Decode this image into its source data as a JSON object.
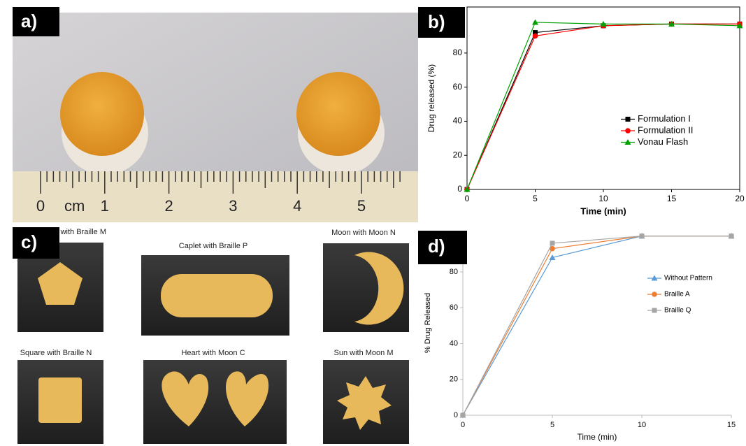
{
  "panel_labels": [
    "a)",
    "b)",
    "c)",
    "d)"
  ],
  "ruler": {
    "unit": "cm",
    "numbers": [
      0,
      1,
      2,
      3,
      4,
      5
    ]
  },
  "captions": [
    "with Braille M",
    "Caplet with Braille P",
    "Moon with Moon N",
    "Square with Braille N",
    "Heart with Moon C",
    "Sun with Moon M"
  ],
  "chart_data": [
    {
      "type": "line",
      "xlabel": "Time (min)",
      "ylabel": "Drug released (%)",
      "x": [
        0,
        5,
        10,
        15,
        20
      ],
      "xlim": [
        0,
        20
      ],
      "xticks": [
        0,
        5,
        10,
        15,
        20
      ],
      "ylim": [
        0,
        107
      ],
      "yticks": [
        0,
        20,
        40,
        60,
        80
      ],
      "frame": true,
      "legend": "center right",
      "series": [
        {
          "name": "Formulation I",
          "color": "#000000",
          "marker": "square",
          "values": [
            0,
            92,
            96,
            97,
            97
          ]
        },
        {
          "name": "Formulation II",
          "color": "#ff0000",
          "marker": "circle",
          "values": [
            0,
            90,
            96,
            97,
            97
          ]
        },
        {
          "name": "Vonau Flash",
          "color": "#00a000",
          "marker": "triangle",
          "values": [
            0,
            98,
            97,
            97,
            96
          ]
        }
      ]
    },
    {
      "type": "line",
      "xlabel": "Time (min)",
      "ylabel": "% Drug Released",
      "x": [
        0,
        5,
        10,
        15
      ],
      "xlim": [
        0,
        15
      ],
      "xticks": [
        0,
        5,
        10,
        15
      ],
      "ylim": [
        0,
        103
      ],
      "yticks": [
        0,
        20,
        40,
        60,
        80
      ],
      "frame": false,
      "legend": "upper right",
      "series": [
        {
          "name": "Without Pattern",
          "color": "#5b9bd5",
          "marker": "triangle",
          "values": [
            0,
            88,
            100,
            100
          ]
        },
        {
          "name": "Braille A",
          "color": "#ed7d31",
          "marker": "circle",
          "values": [
            0,
            93,
            100,
            100
          ]
        },
        {
          "name": "Braille Q",
          "color": "#a5a5a5",
          "marker": "square",
          "values": [
            0,
            96,
            100,
            100
          ]
        }
      ]
    }
  ]
}
